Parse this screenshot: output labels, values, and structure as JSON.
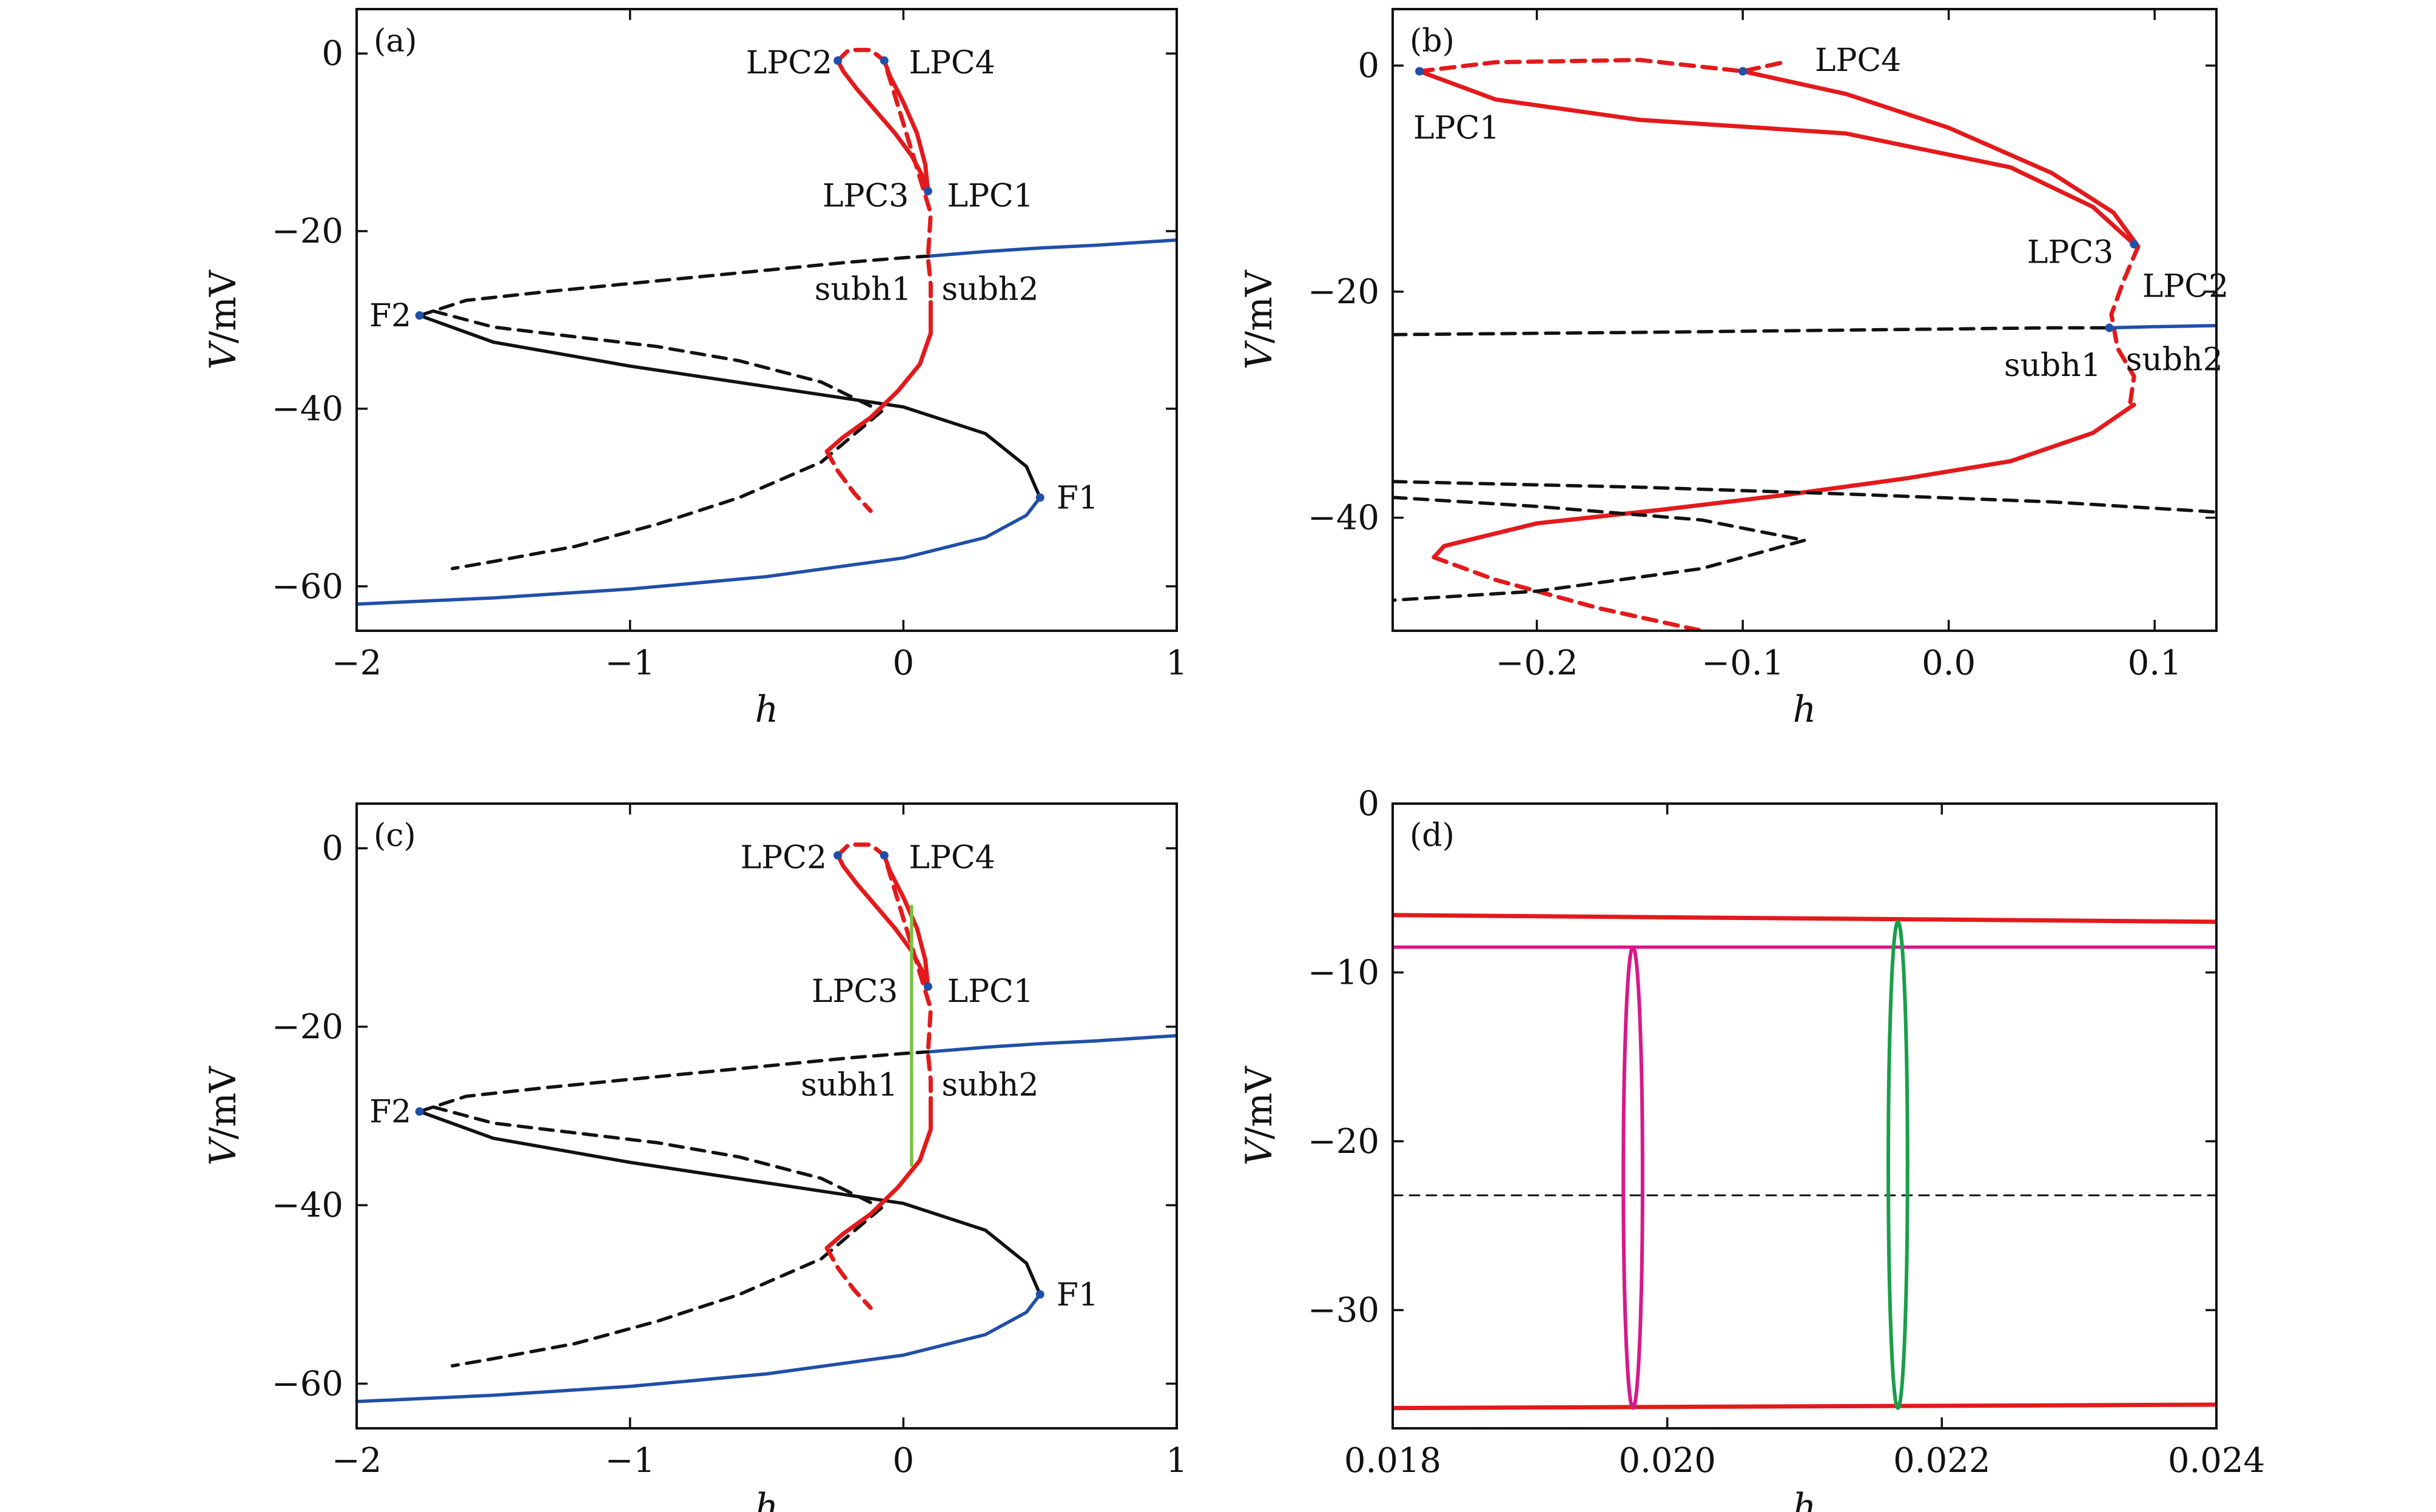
{
  "figure": {
    "panels": [
      {
        "id": "a",
        "label": "(a)",
        "xlabel": "h",
        "ylabel": "V/mV",
        "xlim": [
          -2,
          1
        ],
        "ylim": [
          -65,
          5
        ],
        "xticks": [
          -2,
          -1,
          0,
          1
        ],
        "xtick_labels": [
          "−2",
          "−1",
          "0",
          "1"
        ],
        "yticks": [
          0,
          -20,
          -40,
          -60
        ],
        "ytick_labels": [
          "0",
          "−20",
          "−40",
          "−60"
        ],
        "annotations": [
          {
            "text": "LPC2",
            "x": -0.26,
            "y": -1.0,
            "anchor": "end"
          },
          {
            "text": "LPC4",
            "x": 0.02,
            "y": -1.0,
            "anchor": "start"
          },
          {
            "text": "LPC3",
            "x": 0.02,
            "y": -16.0,
            "anchor": "end"
          },
          {
            "text": "LPC1",
            "x": 0.16,
            "y": -16.0,
            "anchor": "start"
          },
          {
            "text": "subh1",
            "x": 0.03,
            "y": -26.5,
            "anchor": "end"
          },
          {
            "text": "subh2",
            "x": 0.14,
            "y": -26.5,
            "anchor": "start"
          },
          {
            "text": "F2",
            "x": -1.8,
            "y": -29.5,
            "anchor": "end"
          },
          {
            "text": "F1",
            "x": 0.56,
            "y": -50.0,
            "anchor": "start"
          }
        ],
        "special_points": [
          {
            "x": 0.09,
            "y": -15.5
          },
          {
            "x": -0.24,
            "y": -0.8
          },
          {
            "x": -0.07,
            "y": -0.8
          },
          {
            "x": -1.77,
            "y": -29.5
          },
          {
            "x": 0.5,
            "y": -50.0
          }
        ]
      },
      {
        "id": "b",
        "label": "(b)",
        "xlabel": "h",
        "ylabel": "V/mV",
        "xlim": [
          -0.27,
          0.13
        ],
        "ylim": [
          -50,
          5
        ],
        "xticks": [
          -0.2,
          -0.1,
          0.0,
          0.1
        ],
        "xtick_labels": [
          "−0.2",
          "−0.1",
          "0.0",
          "0.1"
        ],
        "yticks": [
          0,
          -20,
          -40
        ],
        "ytick_labels": [
          "0",
          "−20",
          "−40"
        ],
        "annotations": [
          {
            "text": "LPC4",
            "x": -0.065,
            "y": 0.5,
            "anchor": "start"
          },
          {
            "text": "LPC1",
            "x": -0.26,
            "y": -5.5,
            "anchor": "start"
          },
          {
            "text": "LPC3",
            "x": 0.08,
            "y": -16.5,
            "anchor": "end"
          },
          {
            "text": "LPC2",
            "x": 0.094,
            "y": -19.5,
            "anchor": "start"
          },
          {
            "text": "subh1",
            "x": 0.074,
            "y": -26.5,
            "anchor": "end"
          },
          {
            "text": "subh2",
            "x": 0.086,
            "y": -26.0,
            "anchor": "start"
          }
        ],
        "special_points": [
          {
            "x": -0.257,
            "y": -0.5
          },
          {
            "x": -0.1,
            "y": -0.5
          },
          {
            "x": 0.09,
            "y": -15.8
          },
          {
            "x": 0.078,
            "y": -23.2
          }
        ]
      },
      {
        "id": "c",
        "label": "(c)",
        "xlabel": "h",
        "ylabel": "V/mV",
        "xlim": [
          -2,
          1
        ],
        "ylim": [
          -65,
          5
        ],
        "xticks": [
          -2,
          -1,
          0,
          1
        ],
        "xtick_labels": [
          "−2",
          "−1",
          "0",
          "1"
        ],
        "yticks": [
          0,
          -20,
          -40,
          -60
        ],
        "ytick_labels": [
          "0",
          "−20",
          "−40",
          "−60"
        ],
        "annotations": [
          {
            "text": "LPC2",
            "x": -0.28,
            "y": -1.0,
            "anchor": "end"
          },
          {
            "text": "LPC4",
            "x": 0.02,
            "y": -1.0,
            "anchor": "start"
          },
          {
            "text": "LPC3",
            "x": -0.02,
            "y": -16.0,
            "anchor": "end"
          },
          {
            "text": "LPC1",
            "x": 0.16,
            "y": -16.0,
            "anchor": "start"
          },
          {
            "text": "subh1",
            "x": -0.02,
            "y": -26.5,
            "anchor": "end"
          },
          {
            "text": "subh2",
            "x": 0.14,
            "y": -26.5,
            "anchor": "start"
          },
          {
            "text": "F2",
            "x": -1.8,
            "y": -29.5,
            "anchor": "end"
          },
          {
            "text": "F1",
            "x": 0.56,
            "y": -50.0,
            "anchor": "start"
          }
        ],
        "special_points": [
          {
            "x": 0.09,
            "y": -15.5
          },
          {
            "x": -0.24,
            "y": -0.8
          },
          {
            "x": -0.07,
            "y": -0.8
          },
          {
            "x": -1.77,
            "y": -29.5
          },
          {
            "x": 0.5,
            "y": -50.0
          }
        ]
      },
      {
        "id": "d",
        "label": "(d)",
        "xlabel": "h",
        "ylabel": "V/mV",
        "xlim": [
          0.018,
          0.024
        ],
        "ylim": [
          -37,
          0
        ],
        "xticks": [
          0.018,
          0.02,
          0.022,
          0.024
        ],
        "xtick_labels": [
          "0.018",
          "0.020",
          "0.022",
          "0.024"
        ],
        "yticks": [
          0,
          -10,
          -20,
          -30
        ],
        "ytick_labels": [
          "0",
          "−10",
          "−20",
          "−30"
        ],
        "annotations": [],
        "special_points": []
      }
    ]
  },
  "colors": {
    "stable_limit_cycle": "#e31a1c",
    "equilibrium_stable": "#1f4fa8",
    "equilibrium_unstable": "#111111",
    "orbit_green_a": "#7ac143",
    "orbit_green_d": "#1a9e4a",
    "orbit_magenta": "#d6198a",
    "special_point": "#1f4fa8"
  },
  "chart_data": [
    {
      "panel": "a",
      "type": "line",
      "series": [
        {
          "role": "equilibrium-stable-lower",
          "style": "solid",
          "color": "#1f4fa8",
          "x": [
            -2.0,
            -1.5,
            -1.0,
            -0.5,
            0.0,
            0.3,
            0.45,
            0.5
          ],
          "y": [
            -62.0,
            -61.3,
            -60.3,
            -58.9,
            -56.8,
            -54.5,
            -52.0,
            -50.0
          ]
        },
        {
          "role": "equilibrium-unstable-middle",
          "style": "solid",
          "color": "#111111",
          "x": [
            0.5,
            0.45,
            0.3,
            0.0,
            -0.5,
            -1.0,
            -1.5,
            -1.77
          ],
          "y": [
            -50.0,
            -46.5,
            -42.8,
            -39.8,
            -37.5,
            -35.2,
            -32.5,
            -29.5
          ]
        },
        {
          "role": "equilibrium-unstable-upper",
          "style": "dashed",
          "color": "#111111",
          "x": [
            -1.77,
            -1.6,
            -1.3,
            -1.0,
            -0.6,
            -0.2,
            0.0,
            0.1
          ],
          "y": [
            -29.5,
            -27.8,
            -26.8,
            -25.9,
            -24.7,
            -23.5,
            -23.0,
            -22.8
          ]
        },
        {
          "role": "equilibrium-stable-upper",
          "style": "solid",
          "color": "#1f4fa8",
          "x": [
            0.1,
            0.3,
            0.5,
            0.7,
            0.9,
            1.0
          ],
          "y": [
            -22.8,
            -22.3,
            -21.9,
            -21.6,
            -21.2,
            -21.0
          ]
        },
        {
          "role": "unstable-orbit-max",
          "style": "dashed",
          "color": "#111111",
          "x": [
            -1.72,
            -1.5,
            -1.2,
            -0.9,
            -0.6,
            -0.3,
            -0.08
          ],
          "y": [
            -29.0,
            -30.8,
            -31.9,
            -33.0,
            -34.6,
            -37.0,
            -40.3
          ]
        },
        {
          "role": "unstable-orbit-min",
          "style": "dashed",
          "color": "#111111",
          "x": [
            -0.08,
            -0.3,
            -0.6,
            -0.9,
            -1.2,
            -1.5,
            -1.65
          ],
          "y": [
            -40.3,
            -46.0,
            -50.0,
            -53.0,
            -55.5,
            -57.2,
            -58.0
          ]
        },
        {
          "role": "stable-limit-cycle-max",
          "style": "solid",
          "color": "#e31a1c",
          "x": [
            -0.24,
            -0.22,
            -0.17,
            -0.1,
            -0.03,
            0.03,
            0.07,
            0.09
          ],
          "y": [
            -0.8,
            -2.0,
            -4.0,
            -6.5,
            -9.0,
            -11.5,
            -13.8,
            -15.5
          ]
        },
        {
          "role": "stable-limit-cycle-max-2",
          "style": "solid",
          "color": "#e31a1c",
          "x": [
            -0.07,
            -0.05,
            0.0,
            0.05,
            0.08,
            0.09
          ],
          "y": [
            -0.8,
            -2.5,
            -5.5,
            -9.0,
            -12.5,
            -15.5
          ]
        },
        {
          "role": "stable-limit-cycle-lower",
          "style": "solid",
          "color": "#e31a1c",
          "x": [
            0.1,
            0.1,
            0.06,
            -0.02,
            -0.12,
            -0.22,
            -0.28
          ],
          "y": [
            -28.0,
            -31.5,
            -35.0,
            -38.0,
            -41.0,
            -43.2,
            -44.8
          ]
        },
        {
          "role": "unstable-limit-cycle",
          "style": "dashed",
          "color": "#e31a1c",
          "x": [
            -0.24,
            -0.2,
            -0.12,
            -0.07,
            0.1,
            0.09,
            0.1,
            0.1
          ],
          "y": [
            -0.8,
            0.4,
            0.4,
            -0.8,
            -18.0,
            -23.0,
            -26.0,
            -28.0
          ]
        },
        {
          "role": "unstable-limit-cycle-lower",
          "style": "dashed",
          "color": "#e31a1c",
          "x": [
            -0.28,
            -0.24,
            -0.18,
            -0.12
          ],
          "y": [
            -44.8,
            -47.0,
            -49.5,
            -51.5
          ]
        }
      ]
    },
    {
      "panel": "b",
      "type": "line",
      "series": [
        {
          "role": "stable-limit-cycle-upper",
          "style": "solid",
          "color": "#e31a1c",
          "x": [
            -0.257,
            -0.22,
            -0.15,
            -0.05,
            0.03,
            0.07,
            0.09
          ],
          "y": [
            -0.5,
            -3.0,
            -4.8,
            -6.0,
            -9.0,
            -12.5,
            -15.8
          ]
        },
        {
          "role": "stable-limit-cycle-upper-2",
          "style": "solid",
          "color": "#e31a1c",
          "x": [
            -0.1,
            -0.05,
            0.0,
            0.05,
            0.08,
            0.092
          ],
          "y": [
            -0.5,
            -2.5,
            -5.5,
            -9.5,
            -13.0,
            -16.0
          ]
        },
        {
          "role": "stable-limit-cycle-lower",
          "style": "solid",
          "color": "#e31a1c",
          "x": [
            0.09,
            0.07,
            0.03,
            -0.02,
            -0.08,
            -0.14,
            -0.2,
            -0.245,
            -0.25
          ],
          "y": [
            -30.0,
            -32.5,
            -35.0,
            -36.5,
            -38.0,
            -39.3,
            -40.5,
            -42.5,
            -43.5
          ]
        },
        {
          "role": "unstable-limit-cycle-top",
          "style": "dashed",
          "color": "#e31a1c",
          "x": [
            -0.257,
            -0.22,
            -0.15,
            -0.1,
            -0.08
          ],
          "y": [
            -0.5,
            0.3,
            0.5,
            -0.5,
            0.3
          ]
        },
        {
          "role": "unstable-limit-cycle-mid",
          "style": "dashed",
          "color": "#e31a1c",
          "x": [
            0.092,
            0.085,
            0.079,
            0.082,
            0.09,
            0.088
          ],
          "y": [
            -16.0,
            -19.0,
            -22.0,
            -25.0,
            -27.5,
            -30.0
          ]
        },
        {
          "role": "unstable-limit-cycle-bottom",
          "style": "dashed",
          "color": "#e31a1c",
          "x": [
            -0.25,
            -0.22,
            -0.17,
            -0.12
          ],
          "y": [
            -43.5,
            -45.5,
            -48.0,
            -50.0
          ]
        },
        {
          "role": "equilibrium-unstable-upper",
          "style": "dashed",
          "color": "#111111",
          "x": [
            -0.27,
            -0.15,
            -0.05,
            0.05,
            0.078
          ],
          "y": [
            -23.8,
            -23.6,
            -23.4,
            -23.2,
            -23.2
          ]
        },
        {
          "role": "equilibrium-stable-upper",
          "style": "solid",
          "color": "#1f4fa8",
          "x": [
            0.078,
            0.1,
            0.13
          ],
          "y": [
            -23.2,
            -23.1,
            -23.0
          ]
        },
        {
          "role": "equilibrium-unstable-middle",
          "style": "dashed",
          "color": "#111111",
          "x": [
            -0.27,
            -0.15,
            -0.05,
            0.05,
            0.13
          ],
          "y": [
            -36.8,
            -37.3,
            -37.9,
            -38.6,
            -39.5
          ]
        },
        {
          "role": "unstable-orbit-branch",
          "style": "dashed",
          "color": "#111111",
          "x": [
            -0.27,
            -0.2,
            -0.12,
            -0.07,
            -0.12,
            -0.2,
            -0.27
          ],
          "y": [
            -38.2,
            -39.0,
            -40.2,
            -42.0,
            -44.5,
            -46.5,
            -47.3
          ]
        }
      ]
    },
    {
      "panel": "c",
      "type": "line",
      "series": [
        {
          "role": "same-as-panel-a",
          "style": "solid",
          "color": "#e31a1c",
          "x": [],
          "y": []
        },
        {
          "role": "stable-orbit-vertical",
          "style": "solid",
          "color": "#7ac143",
          "x": [
            0.03,
            0.03
          ],
          "y": [
            -6.5,
            -35.5
          ]
        }
      ]
    },
    {
      "panel": "d",
      "type": "line",
      "series": [
        {
          "role": "stable-limit-cycle-max",
          "style": "solid",
          "color": "#e31a1c",
          "x": [
            0.018,
            0.024
          ],
          "y": [
            -6.6,
            -7.0
          ]
        },
        {
          "role": "stable-limit-cycle-min",
          "style": "solid",
          "color": "#e31a1c",
          "x": [
            0.018,
            0.024
          ],
          "y": [
            -35.8,
            -35.6
          ]
        },
        {
          "role": "orbit-max-magenta",
          "style": "solid",
          "color": "#d6198a",
          "x": [
            0.018,
            0.024
          ],
          "y": [
            -8.5,
            -8.5
          ]
        },
        {
          "role": "equilibrium-unstable",
          "style": "dashed",
          "color": "#111111",
          "x": [
            0.018,
            0.024
          ],
          "y": [
            -23.2,
            -23.2
          ]
        },
        {
          "role": "orbit-magenta",
          "type": "ellipse",
          "color": "#d6198a",
          "cx": 0.01975,
          "cy": -22.15,
          "rx": 7e-05,
          "ry": 13.65
        },
        {
          "role": "orbit-green",
          "type": "ellipse",
          "color": "#1a9e4a",
          "cx": 0.02168,
          "cy": -21.4,
          "rx": 7e-05,
          "ry": 14.4
        }
      ]
    }
  ]
}
